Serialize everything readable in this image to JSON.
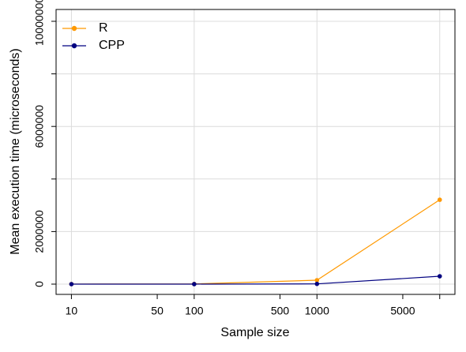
{
  "chart_data": {
    "type": "line",
    "xlabel": "Sample size",
    "ylabel": "Mean execution time (microseconds)",
    "x": [
      10,
      100,
      1000,
      10000
    ],
    "series": [
      {
        "name": "R",
        "color": "#ff9900",
        "values": [
          2000,
          8000,
          150000,
          3210000
        ]
      },
      {
        "name": "CPP",
        "color": "#000080",
        "values": [
          500,
          1000,
          10000,
          300000
        ]
      }
    ],
    "xlog": true,
    "xlim": [
      7.5,
      13300
    ],
    "xticks": [
      10,
      50,
      100,
      500,
      1000,
      5000
    ],
    "xticks_minor": [
      10000
    ],
    "ylim": [
      -390000,
      10450000
    ],
    "yticks": [
      0,
      2000000,
      6000000,
      10000000
    ],
    "yticks_minor": [
      4000000,
      8000000
    ],
    "grid": true,
    "legend": "top-left"
  }
}
